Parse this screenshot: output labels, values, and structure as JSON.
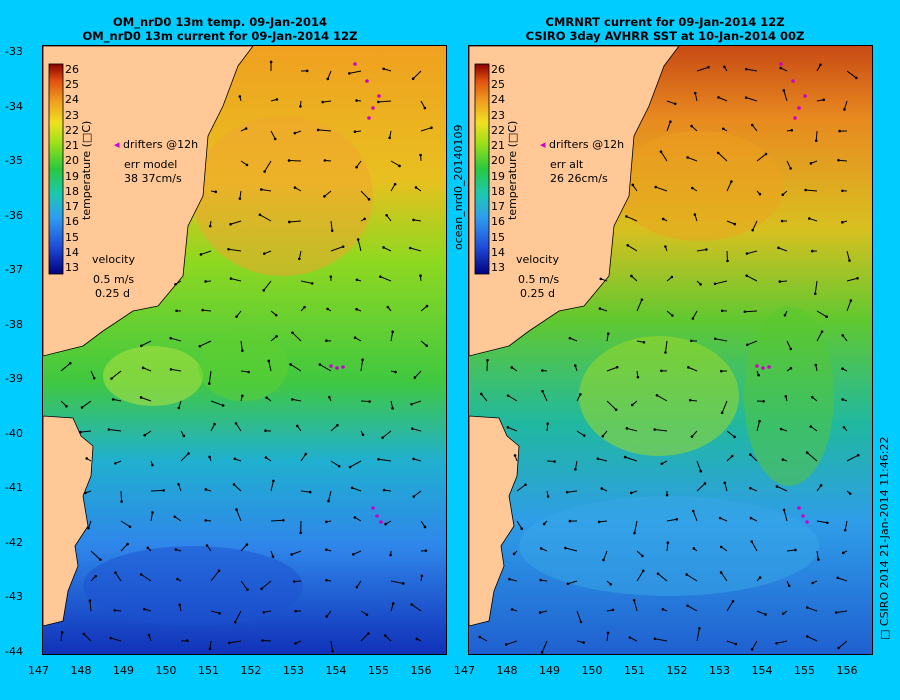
{
  "left_panel": {
    "title_line1": "OM_nrD0 13m temp. 09-Jan-2014",
    "title_line2": "OM_nrD0 13m current for 09-Jan-2014 12Z",
    "drifters_label": "drifters @12h",
    "err_label": "err model",
    "err_value": "38 37cm/s"
  },
  "right_panel": {
    "title_line1": "CMRNRT current for 09-Jan-2014 12Z",
    "title_line2": "CSIRO 3day AVHRR SST at 10-Jan-2014 00Z",
    "drifters_label": "drifters @12h",
    "err_label": "err alt",
    "err_value": "26 26cm/s"
  },
  "colorbar": {
    "label": "temperature (□C)",
    "min": 13,
    "max": 26,
    "ticks": [
      "26",
      "25",
      "24",
      "23",
      "22",
      "21",
      "20",
      "19",
      "18",
      "17",
      "16",
      "15",
      "14",
      "13"
    ]
  },
  "velocity_key": {
    "title": "velocity",
    "speed": "0.5 m/s",
    "duration": "0.25 d"
  },
  "axes": {
    "lon_ticks": [
      "147",
      "148",
      "149",
      "150",
      "151",
      "152",
      "153",
      "154",
      "155",
      "156"
    ],
    "lat_ticks": [
      "-33",
      "-34",
      "-35",
      "-36",
      "-37",
      "-38",
      "-39",
      "-40",
      "-41",
      "-42",
      "-43",
      "-44"
    ]
  },
  "side_text": {
    "run_id": "ocean_nrd0_20140109",
    "credit": "□ CSIRO 2014   21-Jan-2014 11:46:22"
  },
  "colors": {
    "background": "#00ccff",
    "land": "#ffc896",
    "drifter": "#cc00cc"
  }
}
